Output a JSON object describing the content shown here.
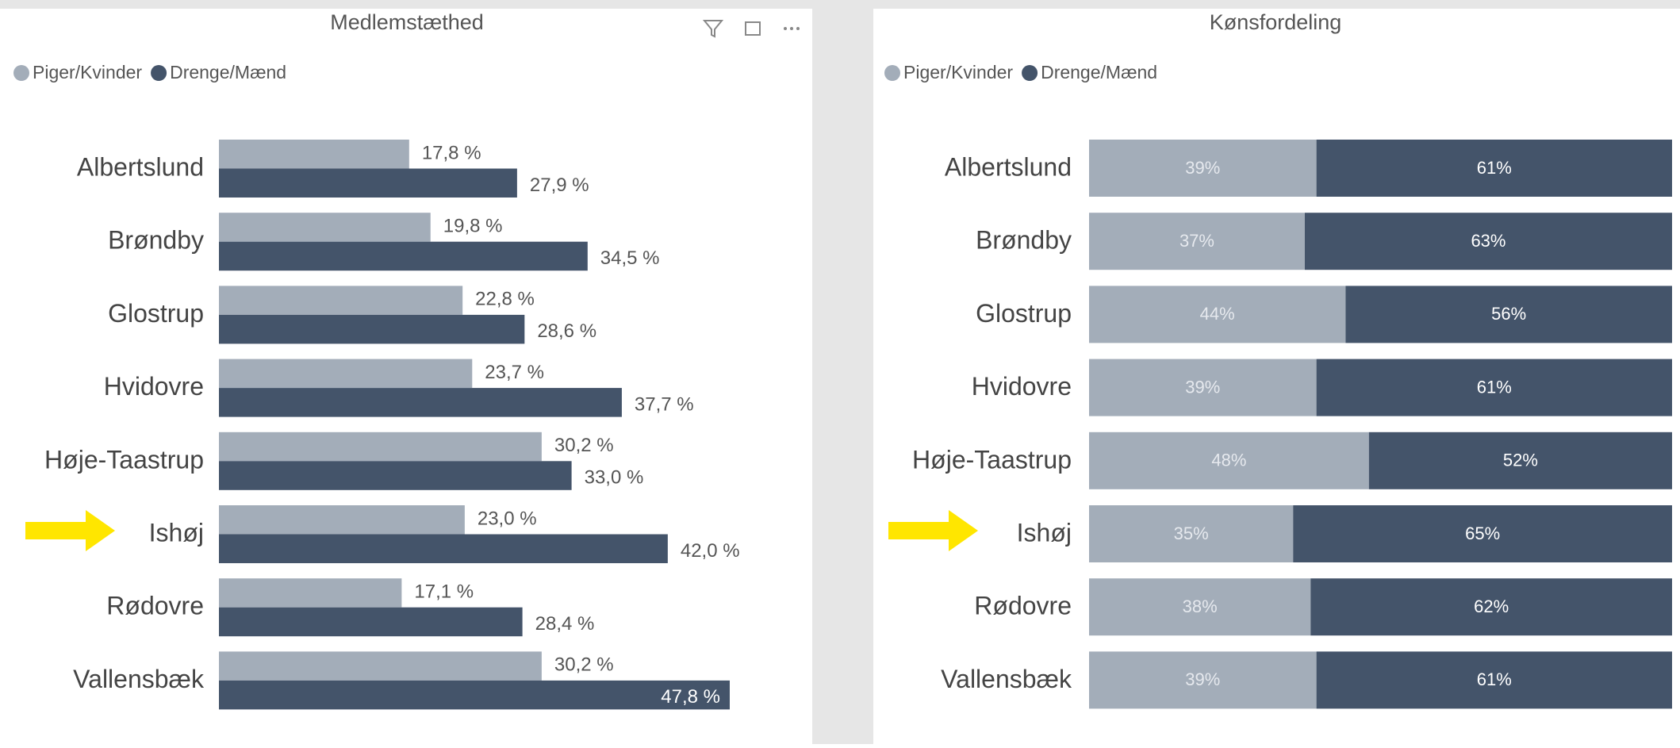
{
  "chart_data": [
    {
      "type": "grouped_hbar",
      "title": "Medlemstæthed",
      "categories": [
        "Albertslund",
        "Brøndby",
        "Glostrup",
        "Hvidovre",
        "Høje-Taastrup",
        "Ishøj",
        "Rødovre",
        "Vallensbæk"
      ],
      "series": [
        {
          "name": "Piger/Kvinder",
          "color": "#a3adb9",
          "values": [
            17.8,
            19.8,
            22.8,
            23.7,
            30.2,
            23.0,
            17.1,
            30.2
          ],
          "value_labels": [
            "17,8 %",
            "19,8 %",
            "22,8 %",
            "23,7 %",
            "30,2 %",
            "23,0 %",
            "17,1 %",
            "30,2 %"
          ]
        },
        {
          "name": "Drenge/Mænd",
          "color": "#44546a",
          "values": [
            27.9,
            34.5,
            28.6,
            37.7,
            33.0,
            42.0,
            28.4,
            47.8
          ],
          "value_labels": [
            "27,9 %",
            "34,5 %",
            "28,6 %",
            "37,7 %",
            "33,0 %",
            "42,0 %",
            "28,4 %",
            "47,8 %"
          ]
        }
      ],
      "xlim": [
        0,
        55
      ]
    },
    {
      "type": "stacked100_hbar",
      "title": "Kønsfordeling",
      "categories": [
        "Albertslund",
        "Brøndby",
        "Glostrup",
        "Hvidovre",
        "Høje-Taastrup",
        "Ishøj",
        "Rødovre",
        "Vallensbæk"
      ],
      "series": [
        {
          "name": "Piger/Kvinder",
          "color": "#a3adb9",
          "values": [
            39,
            37,
            44,
            39,
            48,
            35,
            38,
            39
          ],
          "value_labels": [
            "39%",
            "37%",
            "44%",
            "39%",
            "48%",
            "35%",
            "38%",
            "39%"
          ]
        },
        {
          "name": "Drenge/Mænd",
          "color": "#44546a",
          "values": [
            61,
            63,
            56,
            61,
            52,
            65,
            62,
            61
          ],
          "value_labels": [
            "61%",
            "63%",
            "56%",
            "61%",
            "52%",
            "65%",
            "62%",
            "61%"
          ]
        }
      ],
      "xlim": [
        0,
        100
      ]
    }
  ]
}
